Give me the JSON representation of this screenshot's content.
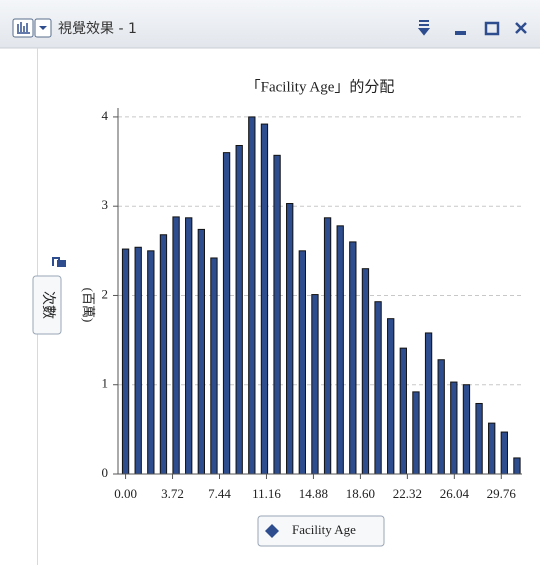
{
  "window": {
    "title": "視覺效果 - 1"
  },
  "chart_data": {
    "type": "histogram",
    "title": "「Facility Age」的分配",
    "x_label": "Facility Age",
    "y_label": "次數",
    "y_unit": "(百萬)",
    "bins": [
      -0.5,
      0.5,
      1.5,
      2.5,
      3.5,
      4.5,
      5.5,
      6.5,
      7.5,
      8.5,
      9.5,
      10.5,
      11.5,
      12.5,
      13.5,
      14.5,
      15.5,
      16.5,
      17.5,
      18.5,
      19.5,
      20.5,
      21.5,
      22.5,
      23.5,
      24.5,
      25.5,
      26.5,
      27.5,
      28.5,
      29.5,
      30.5,
      31.5
    ],
    "values": [
      2.52,
      2.54,
      2.5,
      2.68,
      2.88,
      2.87,
      2.74,
      2.42,
      3.6,
      3.68,
      4.0,
      3.92,
      3.57,
      3.03,
      2.5,
      2.01,
      2.87,
      2.78,
      2.6,
      2.3,
      1.93,
      1.74,
      1.41,
      0.92,
      1.58,
      1.28,
      1.03,
      1.0,
      0.79,
      0.57,
      0.47,
      0.18
    ],
    "color": "#2e4d8e",
    "xlim": [
      -0.6,
      31.4
    ],
    "xticks": [
      {
        "value": 0,
        "label": "0.00"
      },
      {
        "value": 3.72,
        "label": "3.72"
      },
      {
        "value": 7.44,
        "label": "7.44"
      },
      {
        "value": 11.16,
        "label": "11.16"
      },
      {
        "value": 14.88,
        "label": "14.88"
      },
      {
        "value": 18.6,
        "label": "18.60"
      },
      {
        "value": 22.32,
        "label": "22.32"
      },
      {
        "value": 26.04,
        "label": "26.04"
      },
      {
        "value": 29.76,
        "label": "29.76"
      }
    ],
    "ylim": [
      0,
      4.1
    ],
    "yticks": [
      0,
      1,
      2,
      3,
      4
    ],
    "grid": true
  }
}
